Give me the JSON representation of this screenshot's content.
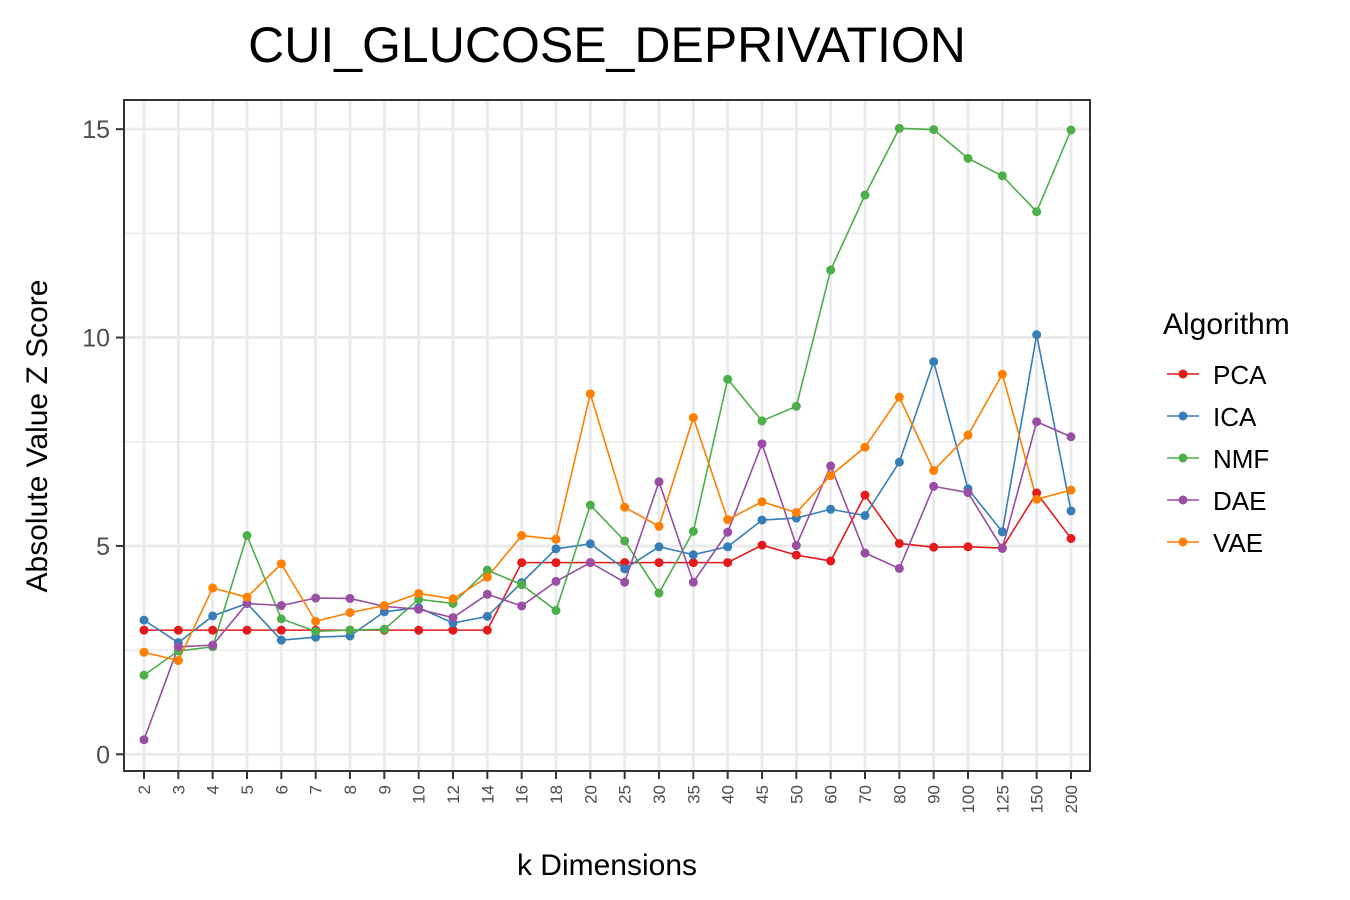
{
  "chart_data": {
    "type": "line",
    "title": "CUI_GLUCOSE_DEPRIVATION",
    "xlabel": "k Dimensions",
    "ylabel": "Absolute Value Z Score",
    "categories": [
      "2",
      "3",
      "4",
      "5",
      "6",
      "7",
      "8",
      "9",
      "10",
      "12",
      "14",
      "16",
      "18",
      "20",
      "25",
      "30",
      "35",
      "40",
      "45",
      "50",
      "60",
      "70",
      "80",
      "90",
      "100",
      "125",
      "150",
      "200"
    ],
    "ylim": [
      -0.4,
      15.7
    ],
    "yticks": [
      0,
      5,
      10,
      15
    ],
    "grid": true,
    "legend": {
      "title": "Algorithm",
      "position": "right"
    },
    "series": [
      {
        "name": "PCA",
        "color": "#e41a1c",
        "values": [
          2.98,
          2.98,
          2.98,
          2.98,
          2.98,
          2.98,
          2.98,
          2.98,
          2.98,
          2.98,
          2.98,
          4.6,
          4.6,
          4.6,
          4.6,
          4.6,
          4.6,
          4.6,
          5.02,
          4.78,
          4.64,
          6.22,
          5.06,
          4.97,
          4.98,
          4.95,
          6.27,
          5.18
        ]
      },
      {
        "name": "ICA",
        "color": "#377eb8",
        "values": [
          3.22,
          2.68,
          3.32,
          3.62,
          2.74,
          2.81,
          2.84,
          3.42,
          3.52,
          3.15,
          3.31,
          4.12,
          4.93,
          5.05,
          4.45,
          4.98,
          4.79,
          4.98,
          5.62,
          5.67,
          5.88,
          5.73,
          7.01,
          9.42,
          6.37,
          5.34,
          10.07,
          5.84
        ]
      },
      {
        "name": "NMF",
        "color": "#4daf4a",
        "values": [
          1.9,
          2.48,
          2.58,
          5.25,
          3.25,
          2.95,
          2.98,
          3.0,
          3.72,
          3.62,
          4.42,
          4.07,
          3.45,
          5.98,
          5.12,
          3.87,
          5.35,
          9.0,
          8.0,
          8.35,
          11.62,
          13.42,
          15.02,
          14.99,
          14.3,
          13.88,
          13.02,
          14.98
        ]
      },
      {
        "name": "DAE",
        "color": "#984ea3",
        "values": [
          0.35,
          2.58,
          2.62,
          3.62,
          3.57,
          3.75,
          3.74,
          3.55,
          3.48,
          3.28,
          3.84,
          3.56,
          4.15,
          4.6,
          4.13,
          6.54,
          4.13,
          5.33,
          7.45,
          5.01,
          6.92,
          4.83,
          4.46,
          6.43,
          6.28,
          4.94,
          7.98,
          7.62
        ]
      },
      {
        "name": "VAE",
        "color": "#ff7f00",
        "values": [
          2.45,
          2.25,
          3.99,
          3.77,
          4.57,
          3.19,
          3.4,
          3.57,
          3.86,
          3.73,
          4.25,
          5.25,
          5.16,
          8.65,
          5.93,
          5.47,
          8.08,
          5.63,
          6.06,
          5.8,
          6.69,
          7.37,
          8.57,
          6.81,
          7.66,
          9.12,
          6.12,
          6.34
        ]
      }
    ]
  }
}
